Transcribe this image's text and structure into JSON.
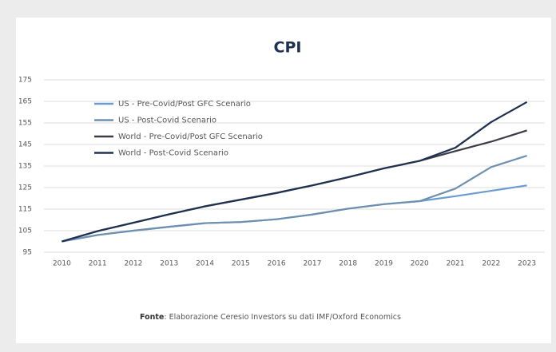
{
  "chart_data": {
    "type": "line",
    "title": "CPI",
    "categories": [
      "2010",
      "2011",
      "2012",
      "2013",
      "2014",
      "2015",
      "2016",
      "2017",
      "2018",
      "2019",
      "2020",
      "2021",
      "2022",
      "2023"
    ],
    "series": [
      {
        "name": "US - Pre-Covid/Post GFC Scenario",
        "color": "#6a9bd1",
        "values": [
          100,
          103,
          105,
          106.8,
          108.5,
          109,
          110.3,
          112.5,
          115.2,
          117.3,
          118.7,
          121,
          123.5,
          126
        ]
      },
      {
        "name": "US - Post-Covid Scenario",
        "color": "#6f8fae",
        "values": [
          100,
          103,
          105,
          106.8,
          108.5,
          109,
          110.3,
          112.5,
          115.2,
          117.3,
          118.7,
          124.5,
          134.5,
          139.8
        ]
      },
      {
        "name": "World - Pre-Covid/Post GFC Scenario",
        "color": "#3c3c46",
        "values": [
          100,
          104.8,
          108.7,
          112.6,
          116.3,
          119.4,
          122.5,
          126,
          129.8,
          133.9,
          137.4,
          141.9,
          146.3,
          151.5
        ]
      },
      {
        "name": "World - Post-Covid Scenario",
        "color": "#1f3050",
        "values": [
          100,
          104.8,
          108.7,
          112.6,
          116.3,
          119.4,
          122.5,
          126,
          129.8,
          133.9,
          137.4,
          143.5,
          155.4,
          164.7
        ]
      }
    ],
    "ylim": [
      95,
      175
    ],
    "yticks": [
      95,
      105,
      115,
      125,
      135,
      145,
      155,
      165,
      175
    ],
    "grid": true,
    "legend": "upper left",
    "source_label": "Fonte",
    "source_text": ": Elaborazione Ceresio Investors su dati IMF/Oxford Economics"
  }
}
